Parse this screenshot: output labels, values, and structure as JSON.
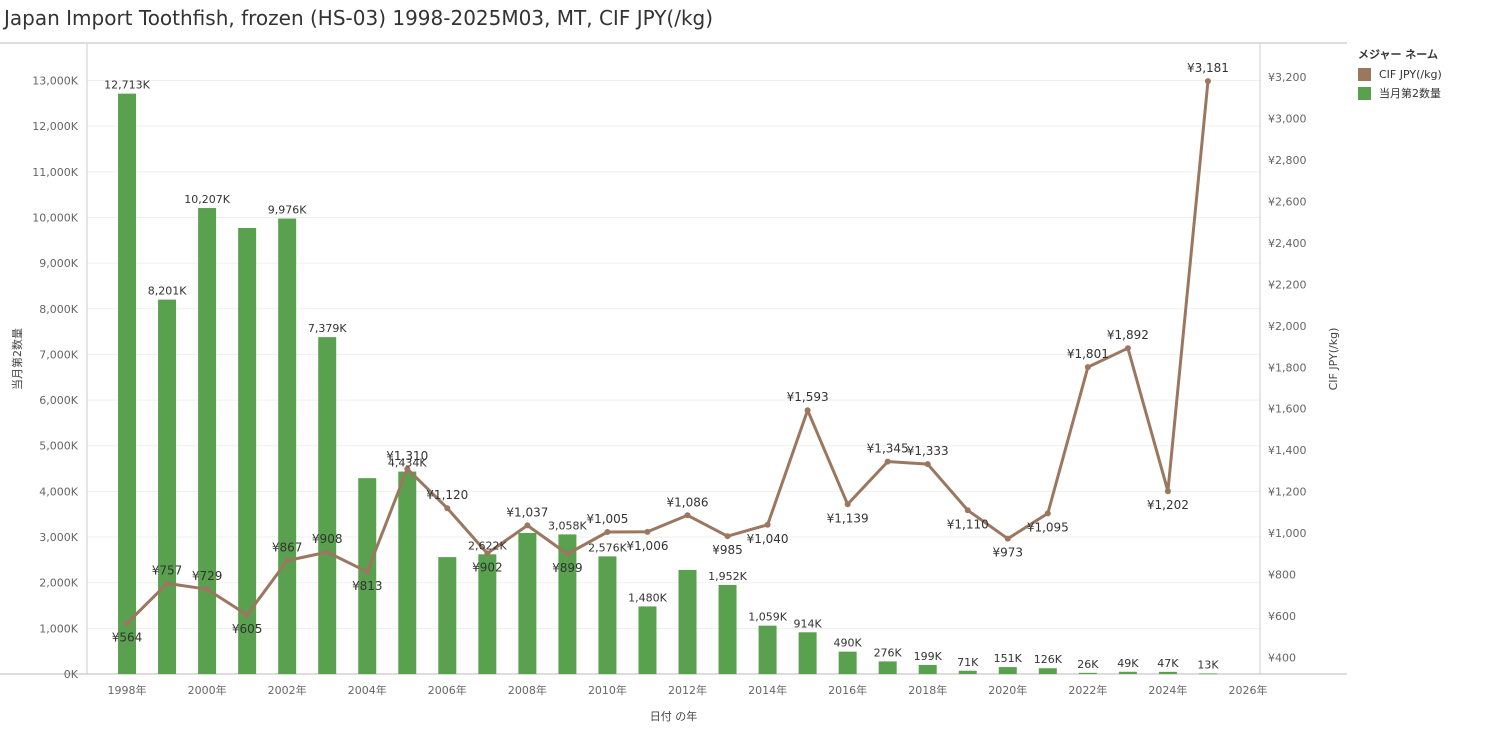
{
  "title": "Japan Import Toothfish, frozen (HS-03) 1998-2025M03, MT, CIF JPY(/kg)",
  "legend": {
    "title": "メジャー ネーム",
    "items": [
      {
        "label": "CIF JPY(/kg)",
        "color": "#9c7760"
      },
      {
        "label": "当月第2数量",
        "color": "#59a14f"
      }
    ]
  },
  "chart_data": {
    "type": "bar+line",
    "x": [
      1998,
      1999,
      2000,
      2001,
      2002,
      2003,
      2004,
      2005,
      2006,
      2007,
      2008,
      2009,
      2010,
      2011,
      2012,
      2013,
      2014,
      2015,
      2016,
      2017,
      2018,
      2019,
      2020,
      2021,
      2022,
      2023,
      2024,
      2025
    ],
    "xlabel": "日付 の年",
    "x_ticks": [
      "1998年",
      "2000年",
      "2002年",
      "2004年",
      "2006年",
      "2008年",
      "2010年",
      "2012年",
      "2014年",
      "2016年",
      "2018年",
      "2020年",
      "2022年",
      "2024年",
      "2026年"
    ],
    "x_tick_values": [
      1998,
      2000,
      2002,
      2004,
      2006,
      2008,
      2010,
      2012,
      2014,
      2016,
      2018,
      2020,
      2022,
      2024,
      2026
    ],
    "xlim": [
      1997,
      2026.3
    ],
    "series": [
      {
        "name": "当月第2数量",
        "type": "bar",
        "axis": "left",
        "color": "#59a14f",
        "values": [
          12713,
          8201,
          10207,
          9770,
          9976,
          7379,
          4290,
          4434,
          2560,
          2622,
          3090,
          3058,
          2576,
          1480,
          2280,
          1952,
          1059,
          914,
          490,
          276,
          199,
          71,
          151,
          126,
          26,
          49,
          47,
          13
        ],
        "labels": [
          "12,713K",
          "8,201K",
          "10,207K",
          "",
          "9,976K",
          "7,379K",
          "",
          "4,434K",
          "",
          "2,622K",
          "",
          "3,058K",
          "2,576K",
          "1,480K",
          "",
          "1,952K",
          "1,059K",
          "914K",
          "490K",
          "276K",
          "199K",
          "71K",
          "151K",
          "126K",
          "26K",
          "49K",
          "47K",
          "13K"
        ]
      },
      {
        "name": "CIF JPY(/kg)",
        "type": "line",
        "axis": "right",
        "color": "#9c7760",
        "values": [
          564,
          757,
          729,
          605,
          867,
          908,
          813,
          1310,
          1120,
          902,
          1037,
          899,
          1005,
          1006,
          1086,
          985,
          1040,
          1593,
          1139,
          1345,
          1333,
          1110,
          973,
          1095,
          1801,
          1892,
          1202,
          3181
        ],
        "labels": [
          "¥564",
          "¥757",
          "¥729",
          "¥605",
          "¥867",
          "¥908",
          "¥813",
          "¥1,310",
          "¥1,120",
          "¥902",
          "¥1,037",
          "¥899",
          "¥1,005",
          "¥1,006",
          "¥1,086",
          "¥985",
          "¥1,040",
          "¥1,593",
          "¥1,139",
          "¥1,345",
          "¥1,333",
          "¥1,110",
          "¥973",
          "¥1,095",
          "¥1,801",
          "¥1,892",
          "¥1,202",
          "¥3,181"
        ],
        "label_pos": [
          "below",
          "above",
          "above",
          "below",
          "above",
          "above",
          "below",
          "above",
          "above",
          "below",
          "above",
          "below",
          "above",
          "below",
          "above",
          "below",
          "below",
          "above",
          "below",
          "above",
          "above",
          "below",
          "below",
          "below",
          "above",
          "above",
          "below",
          "above"
        ]
      }
    ],
    "y_left": {
      "label": "当月第2数量",
      "range": [
        0,
        13800
      ],
      "ticks": [
        0,
        1000,
        2000,
        3000,
        4000,
        5000,
        6000,
        7000,
        8000,
        9000,
        10000,
        11000,
        12000,
        13000
      ],
      "tick_labels": [
        "0K",
        "1,000K",
        "2,000K",
        "3,000K",
        "4,000K",
        "5,000K",
        "6,000K",
        "7,000K",
        "8,000K",
        "9,000K",
        "10,000K",
        "11,000K",
        "12,000K",
        "13,000K"
      ]
    },
    "y_right": {
      "label": "CIF JPY(/kg)",
      "range": [
        320,
        3360
      ],
      "ticks": [
        400,
        600,
        800,
        1000,
        1200,
        1400,
        1600,
        1800,
        2000,
        2200,
        2400,
        2600,
        2800,
        3000,
        3200
      ],
      "tick_labels": [
        "¥400",
        "¥600",
        "¥800",
        "¥1,000",
        "¥1,200",
        "¥1,400",
        "¥1,600",
        "¥1,800",
        "¥2,000",
        "¥2,200",
        "¥2,400",
        "¥2,600",
        "¥2,800",
        "¥3,000",
        "¥3,200"
      ]
    },
    "grid": true
  }
}
